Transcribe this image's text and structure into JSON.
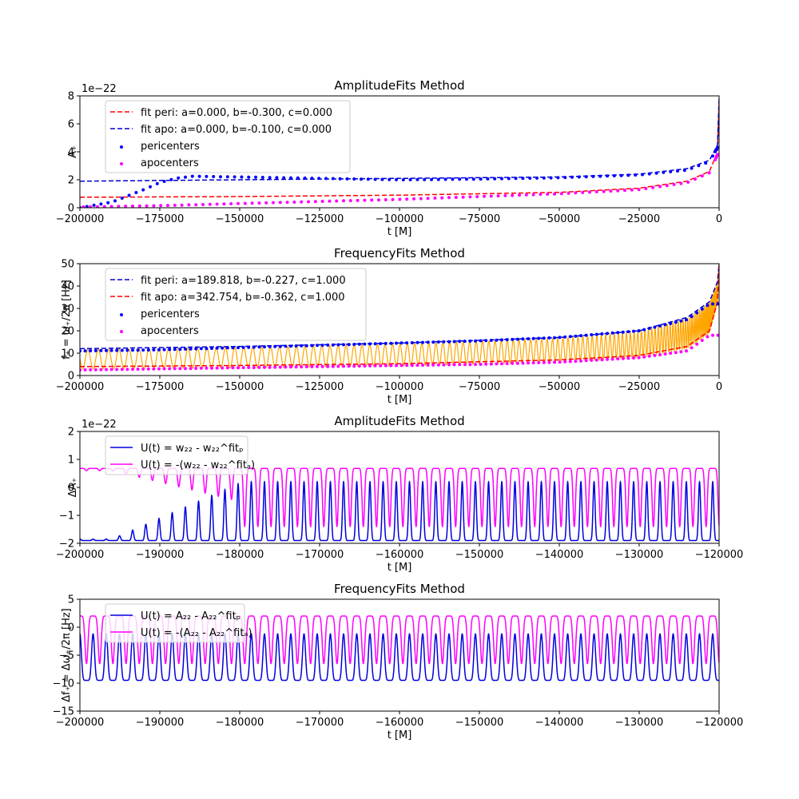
{
  "chart_data": [
    {
      "type": "scatter",
      "title": "AmplitudeFits Method",
      "xlabel": "t [M]",
      "ylabel": "A₊",
      "offset_text": "1e−22",
      "xlim": [
        -200000,
        0
      ],
      "ylim": [
        0,
        8
      ],
      "xticks": [
        "−200000",
        "−175000",
        "−150000",
        "−125000",
        "−100000",
        "−75000",
        "−50000",
        "−25000",
        "0"
      ],
      "yticks": [
        "0",
        "2",
        "4",
        "6",
        "8"
      ],
      "legend_position": "upper-left",
      "series": [
        {
          "name": "fit peri: a=0.000, b=-0.300, c=0.000",
          "kind": "dashed-line",
          "color": "#ff0000",
          "x": [
            -200000,
            -150000,
            -100000,
            -50000,
            -25000,
            -10000,
            -3000,
            -500,
            0
          ],
          "y": [
            0.75,
            0.8,
            0.9,
            1.1,
            1.4,
            1.9,
            2.6,
            4.0,
            7.5
          ]
        },
        {
          "name": "fit apo: a=0.000, b=-0.100, c=0.000",
          "kind": "dashed-line",
          "color": "#0000cc",
          "x": [
            -200000,
            -150000,
            -100000,
            -50000,
            -25000,
            -10000,
            -3000,
            -500,
            0
          ],
          "y": [
            1.9,
            2.0,
            2.1,
            2.2,
            2.4,
            2.8,
            3.4,
            4.5,
            7.8
          ]
        },
        {
          "name": "pericenters",
          "kind": "points",
          "color": "#0000ff",
          "x": [
            -200000,
            -190000,
            -180000,
            -175000,
            -170000,
            -165000,
            -150000,
            -125000,
            -100000,
            -75000,
            -50000,
            -25000,
            -10000,
            -3000,
            -500
          ],
          "y": [
            0.0,
            0.4,
            1.3,
            1.8,
            2.1,
            2.25,
            2.2,
            2.1,
            2.0,
            2.05,
            2.15,
            2.35,
            2.7,
            3.3,
            4.3
          ]
        },
        {
          "name": "apocenters",
          "kind": "points",
          "color": "#ff00ff",
          "x": [
            -200000,
            -175000,
            -150000,
            -125000,
            -100000,
            -75000,
            -50000,
            -25000,
            -10000,
            -3000,
            -500
          ],
          "y": [
            0.05,
            0.15,
            0.3,
            0.45,
            0.6,
            0.8,
            1.0,
            1.3,
            1.8,
            2.5,
            3.8
          ]
        }
      ]
    },
    {
      "type": "scatter",
      "title": "FrequencyFits Method",
      "xlabel": "t [M]",
      "ylabel": "f₊ = ω₊/2π [Hz]",
      "xlim": [
        -200000,
        0
      ],
      "ylim": [
        0,
        50
      ],
      "xticks": [
        "−200000",
        "−175000",
        "−150000",
        "−125000",
        "−100000",
        "−75000",
        "−50000",
        "−25000",
        "0"
      ],
      "yticks": [
        "0",
        "10",
        "20",
        "30",
        "40",
        "50"
      ],
      "legend_position": "upper-left",
      "series": [
        {
          "name": "fit peri: a=189.818, b=-0.227, c=1.000",
          "kind": "dashed-line",
          "color": "#0000cc",
          "x": [
            -200000,
            -150000,
            -100000,
            -50000,
            -25000,
            -10000,
            -3000,
            -500,
            0
          ],
          "y": [
            12,
            13,
            14.5,
            17,
            20,
            26,
            33,
            42,
            50
          ]
        },
        {
          "name": "fit apo: a=342.754, b=-0.362, c=1.000",
          "kind": "dashed-line",
          "color": "#ff0000",
          "x": [
            -200000,
            -150000,
            -100000,
            -50000,
            -25000,
            -10000,
            -3000,
            -500,
            0
          ],
          "y": [
            4,
            4.5,
            5.3,
            7,
            9,
            13,
            20,
            33,
            50
          ]
        },
        {
          "name": "pericenters",
          "kind": "points",
          "color": "#0000ff",
          "x": [
            -200000,
            -175000,
            -150000,
            -125000,
            -100000,
            -75000,
            -50000,
            -25000,
            -10000,
            -3000
          ],
          "y": [
            11,
            11.5,
            12.5,
            13.5,
            14.5,
            15.5,
            17,
            20,
            25,
            32
          ]
        },
        {
          "name": "apocenters",
          "kind": "points",
          "color": "#ff00ff",
          "x": [
            -200000,
            -175000,
            -150000,
            -125000,
            -100000,
            -75000,
            -50000,
            -25000,
            -10000,
            -3000
          ],
          "y": [
            2.5,
            3,
            3.5,
            4,
            4.5,
            5,
            6,
            8,
            11,
            18
          ]
        }
      ]
    },
    {
      "type": "line",
      "title": "AmplitudeFits Method",
      "xlabel": "t [M]",
      "ylabel": "ΔA₊",
      "offset_text": "1e−22",
      "xlim": [
        -200000,
        -120000
      ],
      "ylim": [
        -2,
        2
      ],
      "xticks": [
        "−200000",
        "−190000",
        "−180000",
        "−170000",
        "−160000",
        "−150000",
        "−140000",
        "−130000",
        "−120000"
      ],
      "yticks": [
        "−2",
        "−1",
        "0",
        "1",
        "2"
      ],
      "legend_position": "upper-left",
      "series": [
        {
          "name": "U(t) = w₂₂ - w₂₂^fitₚ",
          "color": "#0000dd",
          "oscillation": {
            "mean_low": -1.9,
            "peak_range": [
              -1.85,
              0.25
            ],
            "period": 1650
          }
        },
        {
          "name": "U(t) = -(w₂₂ - w₂₂^fitₐ)",
          "color": "#ff00ff",
          "oscillation": {
            "top": 0.65,
            "trough_range": [
              0.6,
              -1.4
            ],
            "period": 1650
          }
        }
      ]
    },
    {
      "type": "line",
      "title": "FrequencyFits Method",
      "xlabel": "t [M]",
      "ylabel": "Δf₊ = Δω₊/2π [Hz]",
      "xlim": [
        -200000,
        -120000
      ],
      "ylim": [
        -15,
        5
      ],
      "xticks": [
        "−200000",
        "−190000",
        "−180000",
        "−170000",
        "−160000",
        "−150000",
        "−140000",
        "−130000",
        "−120000"
      ],
      "yticks": [
        "−15",
        "−10",
        "−5",
        "0",
        "5"
      ],
      "legend_position": "upper-left",
      "series": [
        {
          "name": "U(t) = A₂₂ - A₂₂^fitₚ",
          "color": "#0000dd",
          "oscillation": {
            "low": -9.5,
            "high": -1.2,
            "period": 1650
          }
        },
        {
          "name": "U(t) = -(A₂₂ - A₂₂^fitₐ)",
          "color": "#ff00ff",
          "oscillation": {
            "low": -6.5,
            "high": 2.0,
            "period": 1650
          }
        }
      ]
    }
  ]
}
